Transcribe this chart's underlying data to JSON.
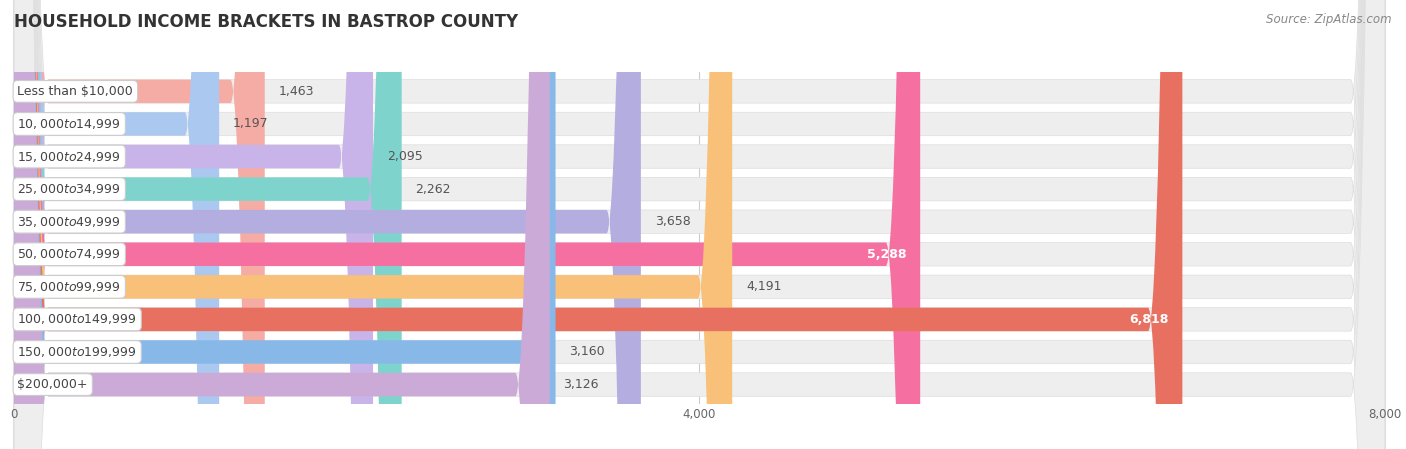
{
  "title": "HOUSEHOLD INCOME BRACKETS IN BASTROP COUNTY",
  "source": "Source: ZipAtlas.com",
  "categories": [
    "Less than $10,000",
    "$10,000 to $14,999",
    "$15,000 to $24,999",
    "$25,000 to $34,999",
    "$35,000 to $49,999",
    "$50,000 to $74,999",
    "$75,000 to $99,999",
    "$100,000 to $149,999",
    "$150,000 to $199,999",
    "$200,000+"
  ],
  "values": [
    1463,
    1197,
    2095,
    2262,
    3658,
    5288,
    4191,
    6818,
    3160,
    3126
  ],
  "bar_colors": [
    "#f5aca4",
    "#aac8f0",
    "#c8b4e8",
    "#7ed4cc",
    "#b4aee0",
    "#f570a0",
    "#f8c078",
    "#e87060",
    "#88b8e8",
    "#ccaad8"
  ],
  "value_inside": [
    false,
    false,
    false,
    false,
    false,
    true,
    false,
    true,
    false,
    false
  ],
  "xlim": [
    0,
    8000
  ],
  "xticks": [
    0,
    4000,
    8000
  ],
  "bg_color": "#ffffff",
  "bar_bg_color": "#eeeeee",
  "bar_bg_outline": "#dddddd",
  "title_fontsize": 12,
  "label_fontsize": 9,
  "value_fontsize": 9
}
